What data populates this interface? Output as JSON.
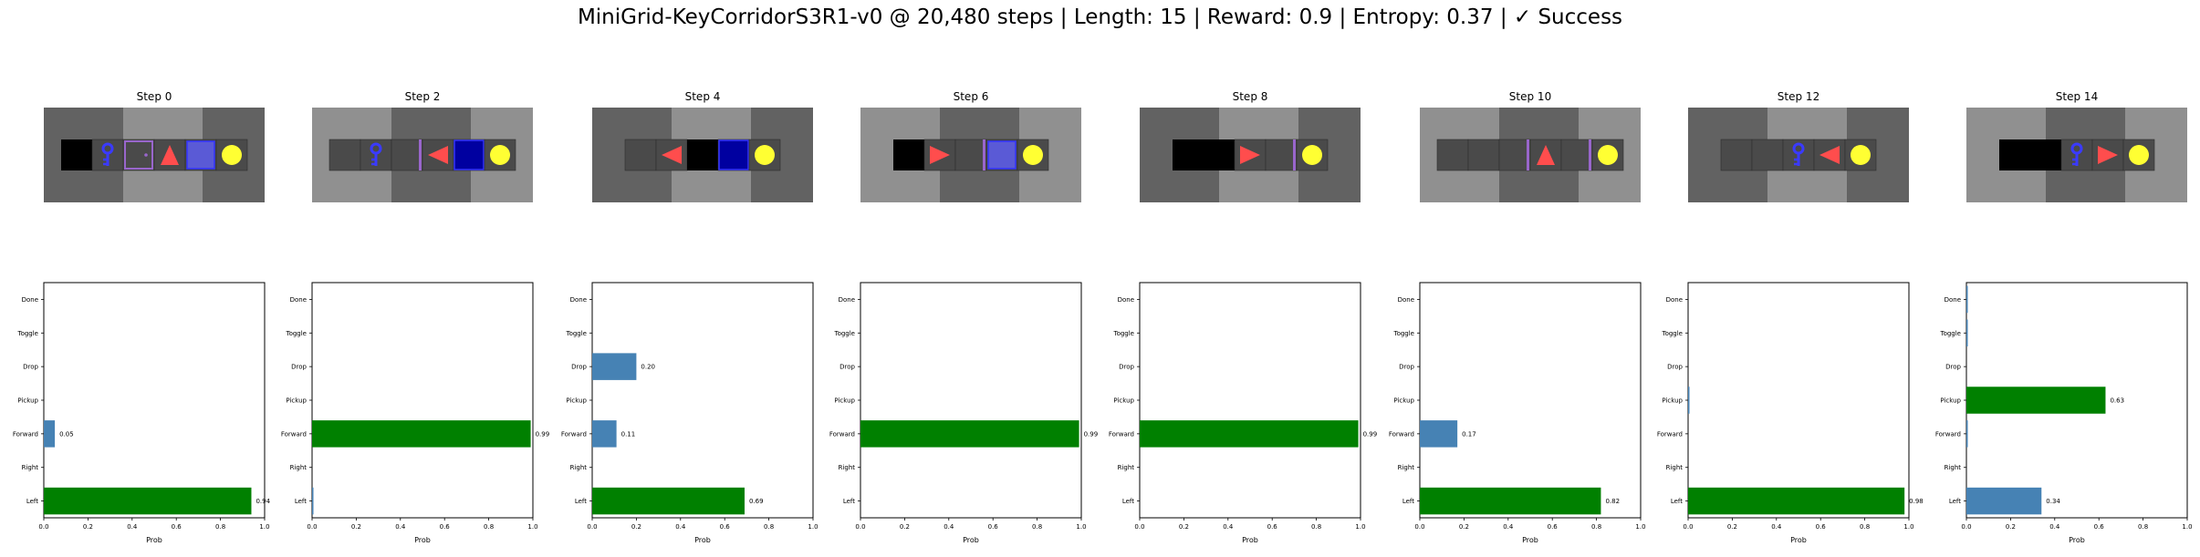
{
  "title": "MiniGrid-KeyCorridorS3R1-v0 @ 20,480 steps | Length: 15 | Reward: 0.9 | Entropy: 0.37 | ✓ Success",
  "colors": {
    "greedy": "#008000",
    "other": "#4682b4",
    "floor": "#4a4a4a",
    "unseen": "#000000",
    "wall_dark": "#626262",
    "wall_light": "#909090",
    "agent": "#ff4d4d",
    "key": "#3a3aff",
    "goal": "#ffff33"
  },
  "chart_data": [
    {
      "type": "bar",
      "orientation": "horizontal",
      "title": "Step 0",
      "categories": [
        "Left",
        "Right",
        "Forward",
        "Pickup",
        "Drop",
        "Toggle",
        "Done"
      ],
      "values": [
        0.94,
        0.0,
        0.05,
        0.0,
        0.0,
        0.0,
        0.0
      ],
      "labels": [
        "0.94",
        "",
        "0.05",
        "",
        "",
        "",
        ""
      ],
      "xlabel": "Prob",
      "xlim": [
        0,
        1
      ],
      "xticks": [
        "0.0",
        "0.2",
        "0.4",
        "0.6",
        "0.8",
        "1.0"
      ],
      "frame": {
        "wall_split": 0.72,
        "left_wall": "dark",
        "right_wall": "dark",
        "mid_wall": "light",
        "cells": [
          "unseen",
          "key",
          "door-purple",
          "agent-up",
          "door-blue",
          "goal"
        ]
      }
    },
    {
      "type": "bar",
      "orientation": "horizontal",
      "title": "Step 2",
      "categories": [
        "Left",
        "Right",
        "Forward",
        "Pickup",
        "Drop",
        "Toggle",
        "Done"
      ],
      "values": [
        0.005,
        0.0,
        0.99,
        0.0,
        0.0,
        0.0,
        0.0
      ],
      "labels": [
        "",
        "",
        "0.99",
        "",
        "",
        "",
        ""
      ],
      "xlabel": "Prob",
      "xlim": [
        0,
        1
      ],
      "xticks": [
        "0.0",
        "0.2",
        "0.4",
        "0.6",
        "0.8",
        "1.0"
      ],
      "frame": {
        "cells": [
          "floor",
          "key",
          "door-open-purple",
          "agent-left",
          "door-blue-filled",
          "goal"
        ]
      }
    },
    {
      "type": "bar",
      "orientation": "horizontal",
      "title": "Step 4",
      "categories": [
        "Left",
        "Right",
        "Forward",
        "Pickup",
        "Drop",
        "Toggle",
        "Done"
      ],
      "values": [
        0.69,
        0.0,
        0.11,
        0.0,
        0.2,
        0.0,
        0.0
      ],
      "labels": [
        "0.69",
        "",
        "0.11",
        "",
        "0.20",
        "",
        ""
      ],
      "xlabel": "Prob",
      "xlim": [
        0,
        1
      ],
      "xticks": [
        "0.0",
        "0.2",
        "0.4",
        "0.6",
        "0.8",
        "1.0"
      ],
      "frame": {
        "cells": [
          "floor",
          "agent-left",
          "unseen",
          "door-blue-filled",
          "goal"
        ]
      }
    },
    {
      "type": "bar",
      "orientation": "horizontal",
      "title": "Step 6",
      "categories": [
        "Left",
        "Right",
        "Forward",
        "Pickup",
        "Drop",
        "Toggle",
        "Done"
      ],
      "values": [
        0.0,
        0.0,
        0.99,
        0.0,
        0.0,
        0.0,
        0.0
      ],
      "labels": [
        "",
        "",
        "0.99",
        "",
        "",
        "",
        ""
      ],
      "xlabel": "Prob",
      "xlim": [
        0,
        1
      ],
      "xticks": [
        "0.0",
        "0.2",
        "0.4",
        "0.6",
        "0.8",
        "1.0"
      ],
      "frame": {
        "cells": [
          "unseen",
          "agent-right",
          "door-open-purple",
          "door-blue",
          "goal"
        ]
      }
    },
    {
      "type": "bar",
      "orientation": "horizontal",
      "title": "Step 8",
      "categories": [
        "Left",
        "Right",
        "Forward",
        "Pickup",
        "Drop",
        "Toggle",
        "Done"
      ],
      "values": [
        0.0,
        0.0,
        0.99,
        0.0,
        0.0,
        0.0,
        0.0
      ],
      "labels": [
        "",
        "",
        "0.99",
        "",
        "",
        "",
        ""
      ],
      "xlabel": "Prob",
      "xlim": [
        0,
        1
      ],
      "xticks": [
        "0.0",
        "0.2",
        "0.4",
        "0.6",
        "0.8",
        "1.0"
      ],
      "frame": {
        "cells": [
          "unseen",
          "unseen",
          "agent-right",
          "door-open-purple",
          "goal"
        ]
      }
    },
    {
      "type": "bar",
      "orientation": "horizontal",
      "title": "Step 10",
      "categories": [
        "Left",
        "Right",
        "Forward",
        "Pickup",
        "Drop",
        "Toggle",
        "Done"
      ],
      "values": [
        0.82,
        0.0,
        0.17,
        0.0,
        0.0,
        0.0,
        0.0
      ],
      "labels": [
        "0.82",
        "",
        "0.17",
        "",
        "",
        "",
        ""
      ],
      "xlabel": "Prob",
      "xlim": [
        0,
        1
      ],
      "xticks": [
        "0.0",
        "0.2",
        "0.4",
        "0.6",
        "0.8",
        "1.0"
      ],
      "frame": {
        "cells": [
          "floor",
          "floor",
          "door-open-purple",
          "agent-up",
          "door-open-purple",
          "goal"
        ]
      }
    },
    {
      "type": "bar",
      "orientation": "horizontal",
      "title": "Step 12",
      "categories": [
        "Left",
        "Right",
        "Forward",
        "Pickup",
        "Drop",
        "Toggle",
        "Done"
      ],
      "values": [
        0.98,
        0.0,
        0.0,
        0.005,
        0.0,
        0.0,
        0.0
      ],
      "labels": [
        "0.98",
        "",
        "",
        "",
        "",
        "",
        ""
      ],
      "xlabel": "Prob",
      "xlim": [
        0,
        1
      ],
      "xticks": [
        "0.0",
        "0.2",
        "0.4",
        "0.6",
        "0.8",
        "1.0"
      ],
      "frame": {
        "cells": [
          "floor",
          "floor",
          "key",
          "agent-left",
          "goal"
        ]
      }
    },
    {
      "type": "bar",
      "orientation": "horizontal",
      "title": "Step 14",
      "categories": [
        "Left",
        "Right",
        "Forward",
        "Pickup",
        "Drop",
        "Toggle",
        "Done"
      ],
      "values": [
        0.34,
        0.0,
        0.005,
        0.63,
        0.0,
        0.005,
        0.005
      ],
      "labels": [
        "0.34",
        "",
        "",
        "0.63",
        "",
        "",
        ""
      ],
      "xlabel": "Prob",
      "xlim": [
        0,
        1
      ],
      "xticks": [
        "0.0",
        "0.2",
        "0.4",
        "0.6",
        "0.8",
        "1.0"
      ],
      "frame": {
        "cells": [
          "unseen",
          "unseen",
          "key",
          "agent-right",
          "goal"
        ]
      }
    }
  ]
}
